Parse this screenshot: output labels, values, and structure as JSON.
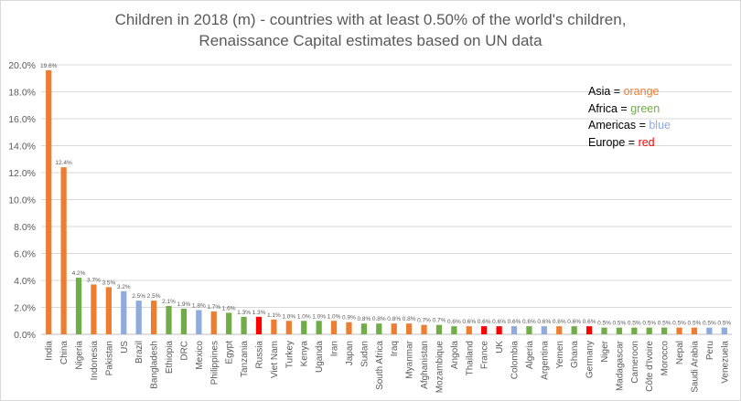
{
  "chart_data": {
    "type": "bar",
    "title_lines": [
      "Children in 2018 (m) - countries with at least 0.50% of the world's children,",
      "Renaissance Capital estimates based on UN data"
    ],
    "xlabel": "",
    "ylabel": "",
    "ylim": [
      0,
      20
    ],
    "yticks": [
      "0.0%",
      "2.0%",
      "4.0%",
      "6.0%",
      "8.0%",
      "10.0%",
      "12.0%",
      "14.0%",
      "16.0%",
      "18.0%",
      "20.0%"
    ],
    "grid": true,
    "legend_position": "top-right",
    "region_colors": {
      "Asia": "#ED7D31",
      "Africa": "#70AD47",
      "Americas": "#8FAADC",
      "Europe": "#FF0000"
    },
    "legend": [
      {
        "name": "Asia",
        "sep": " = ",
        "word": "orange",
        "region": "Asia"
      },
      {
        "name": "Africa",
        "sep": " = ",
        "word": "green",
        "region": "Africa"
      },
      {
        "name": "Americas",
        "sep": " = ",
        "word": "blue",
        "region": "Americas"
      },
      {
        "name": "Europe",
        "sep": " = ",
        "word": "red",
        "region": "Europe"
      }
    ],
    "categories": [
      "India",
      "China",
      "Nigeria",
      "Indonesia",
      "Pakistan",
      "US",
      "Brazil",
      "Bangladesh",
      "Ethiopia",
      "DRC",
      "Mexico",
      "Philippines",
      "Egypt",
      "Tanzania",
      "Russia",
      "Viet Nam",
      "Turkey",
      "Kenya",
      "Uganda",
      "Iran",
      "Japan",
      "Sudan",
      "South Africa",
      "Iraq",
      "Myanmar",
      "Afghanistan",
      "Mozambique",
      "Angola",
      "Thailand",
      "France",
      "UK",
      "Colombia",
      "Algeria",
      "Argentina",
      "Yemen",
      "Ghana",
      "Germany",
      "Niger",
      "Madagascar",
      "Cameroon",
      "Côte d'Ivoire",
      "Morocco",
      "Nepal",
      "Saudi Arabia",
      "Peru",
      "Venezuela"
    ],
    "values": [
      19.6,
      12.4,
      4.2,
      3.7,
      3.5,
      3.2,
      2.5,
      2.5,
      2.1,
      1.9,
      1.8,
      1.7,
      1.6,
      1.3,
      1.3,
      1.1,
      1.0,
      1.0,
      1.0,
      1.0,
      0.9,
      0.8,
      0.8,
      0.8,
      0.8,
      0.7,
      0.7,
      0.6,
      0.6,
      0.6,
      0.6,
      0.6,
      0.6,
      0.6,
      0.6,
      0.6,
      0.6,
      0.5,
      0.5,
      0.5,
      0.5,
      0.5,
      0.5,
      0.5,
      0.5,
      0.5
    ],
    "data_labels": [
      "19.6%",
      "12.4%",
      "4.2%",
      "3.7%",
      "3.5%",
      "3.2%",
      "2.5%",
      "2.5%",
      "2.1%",
      "1.9%",
      "1.8%",
      "1.7%",
      "1.6%",
      "1.3%",
      "1.3%",
      "1.1%",
      "1.0%",
      "1.0%",
      "1.0%",
      "1.0%",
      "0.9%",
      "0.8%",
      "0.8%",
      "0.8%",
      "0.8%",
      "0.7%",
      "0.7%",
      "0.6%",
      "0.6%",
      "0.6%",
      "0.6%",
      "0.6%",
      "0.6%",
      "0.6%",
      "0.6%",
      "0.6%",
      "0.6%",
      "0.5%",
      "0.5%",
      "0.5%",
      "0.5%",
      "0.5%",
      "0.5%",
      "0.5%",
      "0.5%",
      "0.5%"
    ],
    "regions": [
      "Asia",
      "Asia",
      "Africa",
      "Asia",
      "Asia",
      "Americas",
      "Americas",
      "Asia",
      "Africa",
      "Africa",
      "Americas",
      "Asia",
      "Africa",
      "Africa",
      "Europe",
      "Asia",
      "Asia",
      "Africa",
      "Africa",
      "Asia",
      "Asia",
      "Africa",
      "Africa",
      "Asia",
      "Asia",
      "Asia",
      "Africa",
      "Africa",
      "Asia",
      "Europe",
      "Europe",
      "Americas",
      "Africa",
      "Americas",
      "Asia",
      "Africa",
      "Europe",
      "Africa",
      "Africa",
      "Africa",
      "Africa",
      "Africa",
      "Asia",
      "Asia",
      "Americas",
      "Americas"
    ]
  }
}
